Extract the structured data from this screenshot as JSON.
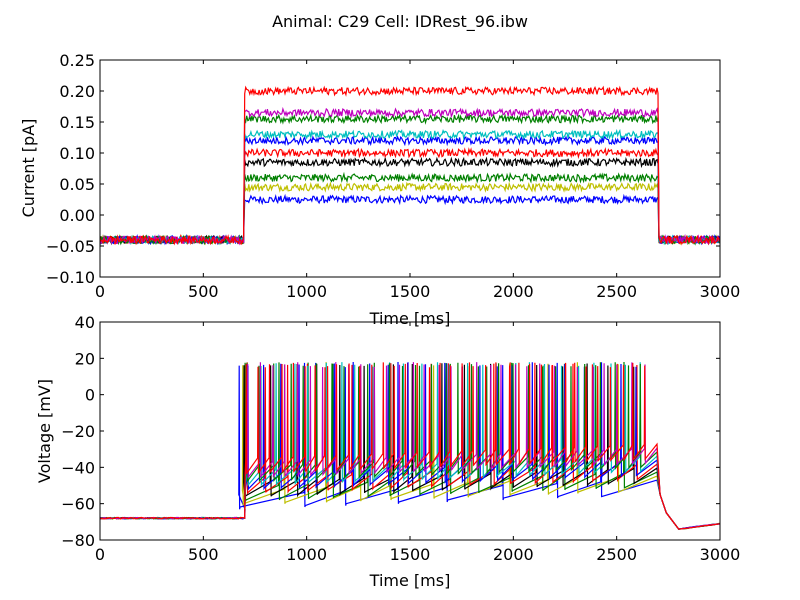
{
  "figure": {
    "suptitle": "Animal: C29 Cell: IDRest_96.ibw"
  },
  "chart_data": [
    {
      "type": "line",
      "xlabel": "Time [ms]",
      "ylabel": "Current [pA]",
      "xlim": [
        0,
        3000
      ],
      "ylim": [
        -0.1,
        0.25
      ],
      "xticks": [
        "0",
        "500",
        "1000",
        "1500",
        "2000",
        "2500",
        "3000"
      ],
      "yticks": [
        "−0.10",
        "−0.05",
        "0.00",
        "0.05",
        "0.10",
        "0.15",
        "0.20",
        "0.25"
      ],
      "grid": false,
      "stimulus": {
        "onset_ms": 700,
        "offset_ms": 2700,
        "baseline": -0.04
      },
      "series": [
        {
          "color": "#0000ff",
          "step_amplitude": 0.025
        },
        {
          "color": "#bfbf00",
          "step_amplitude": 0.045
        },
        {
          "color": "#008000",
          "step_amplitude": 0.06
        },
        {
          "color": "#000000",
          "step_amplitude": 0.085
        },
        {
          "color": "#ff0000",
          "step_amplitude": 0.1
        },
        {
          "color": "#0000ff",
          "step_amplitude": 0.12
        },
        {
          "color": "#00bfbf",
          "step_amplitude": 0.13
        },
        {
          "color": "#008000",
          "step_amplitude": 0.155
        },
        {
          "color": "#bf00bf",
          "step_amplitude": 0.165
        },
        {
          "color": "#ff0000",
          "step_amplitude": 0.2
        }
      ]
    },
    {
      "type": "line",
      "xlabel": "Time [ms]",
      "ylabel": "Voltage [mV]",
      "xlim": [
        0,
        3000
      ],
      "ylim": [
        -80,
        40
      ],
      "xticks": [
        "0",
        "500",
        "1000",
        "1500",
        "2000",
        "2500",
        "3000"
      ],
      "yticks": [
        "−80",
        "−60",
        "−40",
        "−20",
        "0",
        "20",
        "40"
      ],
      "grid": false,
      "stimulus": {
        "onset_ms": 700,
        "offset_ms": 2700
      },
      "resting_potential_mV": -68,
      "spike_peak_mV": 18,
      "after_hyperpolarization_min_mV": -74,
      "series": [
        {
          "color": "#0000ff",
          "spike_count": 8
        },
        {
          "color": "#bfbf00",
          "spike_count": 11
        },
        {
          "color": "#008000",
          "spike_count": 14
        },
        {
          "color": "#000000",
          "spike_count": 17
        },
        {
          "color": "#ff0000",
          "spike_count": 20
        },
        {
          "color": "#0000ff",
          "spike_count": 23
        },
        {
          "color": "#00bfbf",
          "spike_count": 26
        },
        {
          "color": "#008000",
          "spike_count": 29
        },
        {
          "color": "#bf00bf",
          "spike_count": 32
        },
        {
          "color": "#ff0000",
          "spike_count": 36
        }
      ]
    }
  ]
}
